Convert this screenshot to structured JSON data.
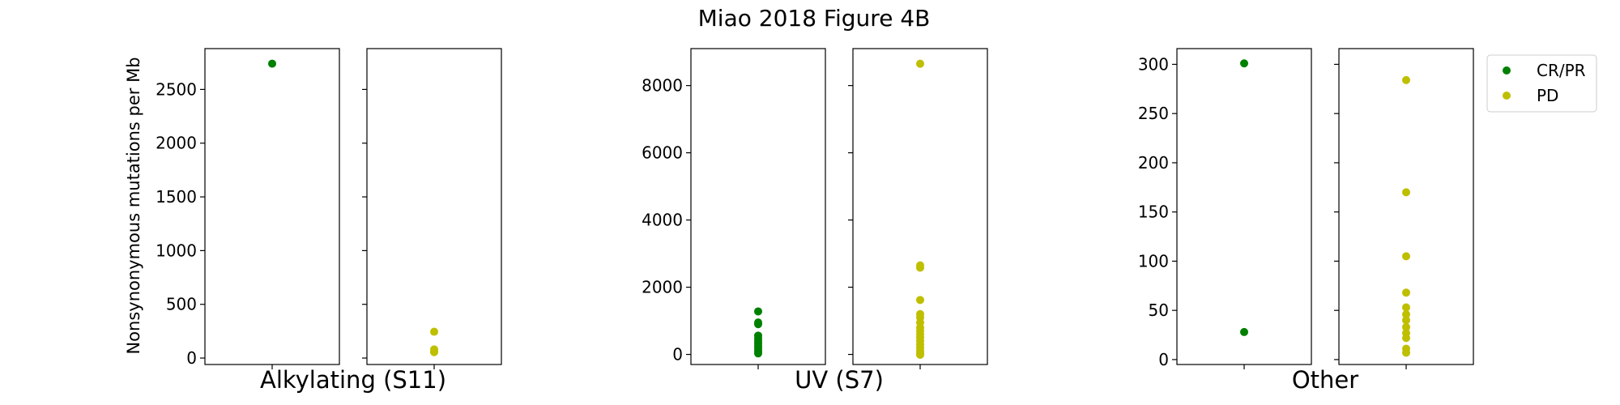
{
  "title": "Miao 2018 Figure 4B",
  "ylabel": "Nonsynonymous mutations per Mb",
  "colors": {
    "CR/PR": "#008000",
    "PD": "#bfbf00"
  },
  "legend": {
    "placement": "upper-right",
    "entries": [
      "CR/PR",
      "PD"
    ]
  },
  "chart_data": {
    "type": "scatter",
    "title": "Miao 2018 Figure 4B",
    "ylabel": "Nonsynonymous mutations per Mb",
    "grid": false,
    "groups": [
      {
        "label": "Alkylating (S11)",
        "ylim": [
          -60,
          2880
        ],
        "yticks": [
          0,
          500,
          1000,
          1500,
          2000,
          2500
        ],
        "series": [
          {
            "name": "CR/PR",
            "values": [
              2740
            ]
          },
          {
            "name": "PD",
            "values": [
              245,
              80,
              60,
              55
            ]
          }
        ]
      },
      {
        "label": "UV (S7)",
        "ylim": [
          -300,
          9100
        ],
        "yticks": [
          0,
          2000,
          4000,
          6000,
          8000
        ],
        "series": [
          {
            "name": "CR/PR",
            "values": [
              1280,
              950,
              900,
              560,
              480,
              400,
              320,
              250,
              180,
              100,
              30
            ]
          },
          {
            "name": "PD",
            "values": [
              8650,
              2650,
              2580,
              1620,
              1200,
              1100,
              950,
              800,
              700,
              600,
              500,
              400,
              300,
              200,
              100,
              30,
              -10
            ]
          }
        ]
      },
      {
        "label": "Other",
        "ylim": [
          -5,
          316
        ],
        "yticks": [
          0,
          50,
          100,
          150,
          200,
          250,
          300
        ],
        "series": [
          {
            "name": "CR/PR",
            "values": [
              301,
              28
            ]
          },
          {
            "name": "PD",
            "values": [
              284,
              170,
              105,
              68,
              53,
              46,
              40,
              33,
              27,
              22,
              11,
              7
            ]
          }
        ]
      }
    ]
  }
}
